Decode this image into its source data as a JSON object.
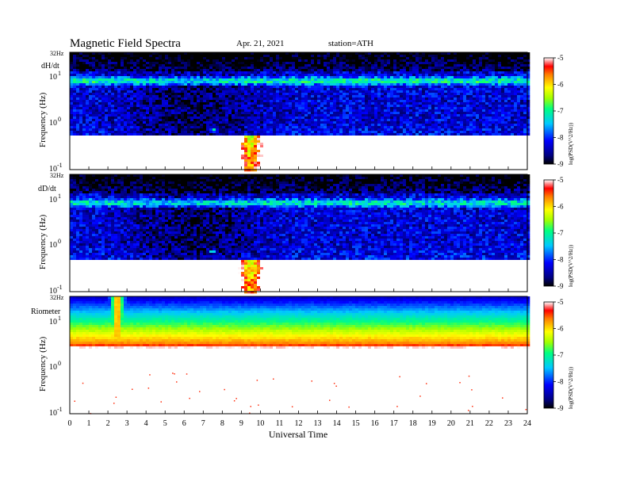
{
  "header": {
    "title": "Magnetic Field Spectra",
    "date": "Apr. 21, 2021",
    "station": "station=ATH"
  },
  "chart_data": [
    {
      "type": "heatmap",
      "panel_label": "dH/dt",
      "ylabel": "Frequency (Hz)",
      "top_tick": "32Hz",
      "y_scale": "log",
      "ylim": [
        0.1,
        32
      ],
      "y_ticks": [
        {
          "base": "10",
          "exp": "1"
        },
        {
          "base": "10",
          "exp": "0"
        },
        {
          "base": "10",
          "exp": "-1"
        }
      ],
      "xlim": [
        0,
        24
      ],
      "colorbar": {
        "label": "log(PSD(V^2/Hz))",
        "ticks": [
          "-5",
          "-6",
          "-7",
          "-8",
          "-9"
        ],
        "range": [
          -9,
          -5
        ]
      },
      "features": [
        {
          "kind": "band",
          "freq_hz": 7.8,
          "level": -6.9
        },
        {
          "kind": "burst",
          "time_h": 9.5,
          "freq_hz": [
            0.1,
            0.55
          ],
          "level": -5.7
        },
        {
          "kind": "spot",
          "time_h": 7.5,
          "freq_hz": 0.7,
          "level": -6.6
        }
      ]
    },
    {
      "type": "heatmap",
      "panel_label": "dD/dt",
      "ylabel": "Frequency (Hz)",
      "top_tick": "32Hz",
      "y_scale": "log",
      "ylim": [
        0.1,
        32
      ],
      "y_ticks": [
        {
          "base": "10",
          "exp": "1"
        },
        {
          "base": "10",
          "exp": "0"
        },
        {
          "base": "10",
          "exp": "-1"
        }
      ],
      "xlim": [
        0,
        24
      ],
      "colorbar": {
        "label": "log(PSD(V^2/Hz))",
        "ticks": [
          "-5",
          "-6",
          "-7",
          "-8",
          "-9"
        ],
        "range": [
          -9,
          -5
        ]
      },
      "features": [
        {
          "kind": "band",
          "freq_hz": 7.8,
          "level": -7.0
        },
        {
          "kind": "burst",
          "time_h": 9.5,
          "freq_hz": [
            0.1,
            0.45
          ],
          "level": -5.7
        },
        {
          "kind": "spot",
          "time_h": 7.5,
          "freq_hz": 0.7,
          "level": -6.6
        }
      ]
    },
    {
      "type": "heatmap",
      "panel_label": "Riometer",
      "ylabel": "Frequency (Hz)",
      "top_tick": "32Hz",
      "y_scale": "log",
      "ylim": [
        0.1,
        32
      ],
      "y_ticks": [
        {
          "base": "10",
          "exp": "1"
        },
        {
          "base": "10",
          "exp": "0"
        },
        {
          "base": "10",
          "exp": "-1"
        }
      ],
      "xlim": [
        0,
        24
      ],
      "colorbar": {
        "label": "log(PSD(V^2/Hz))",
        "ticks": [
          "-5",
          "-6",
          "-7",
          "-8",
          "-9"
        ],
        "range": [
          -9,
          -5
        ]
      },
      "features": [
        {
          "kind": "gradient",
          "freq_hz": [
            3,
            32
          ],
          "level": [
            -5.6,
            -8.2
          ]
        },
        {
          "kind": "spike",
          "time_h": 2.5,
          "freq_hz": [
            3,
            15
          ],
          "level": -5.4
        }
      ]
    }
  ],
  "xaxis": {
    "label": "Universal Time",
    "ticks": [
      "0",
      "1",
      "2",
      "3",
      "4",
      "5",
      "6",
      "7",
      "8",
      "9",
      "10",
      "11",
      "12",
      "13",
      "14",
      "15",
      "16",
      "17",
      "18",
      "19",
      "20",
      "21",
      "22",
      "23",
      "24"
    ]
  }
}
